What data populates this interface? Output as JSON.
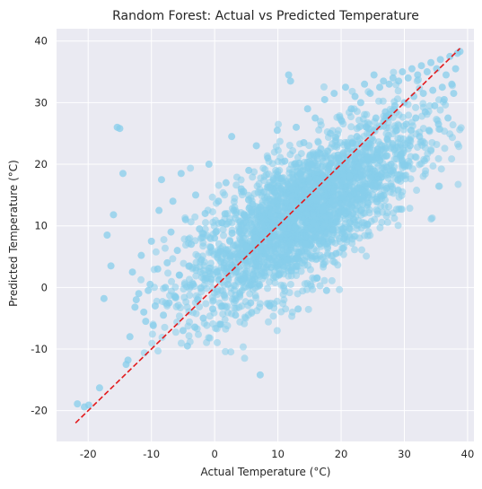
{
  "chart_data": {
    "type": "scatter",
    "title": "Random Forest: Actual vs Predicted Temperature",
    "xlabel": "Actual Temperature (°C)",
    "ylabel": "Predicted Temperature (°C)",
    "xlim": [
      -25,
      41
    ],
    "ylim": [
      -25,
      42
    ],
    "xticks": [
      -20,
      -10,
      0,
      10,
      20,
      30,
      40
    ],
    "yticks": [
      -20,
      -10,
      0,
      10,
      20,
      30,
      40
    ],
    "grid": true,
    "background": "#eaeaf2",
    "grid_color": "#ffffff",
    "point_color": "#87ceeb",
    "point_alpha": 0.55,
    "reference_line": {
      "x": [
        -22,
        38.8
      ],
      "y": [
        -22,
        38.8
      ],
      "color": "#e31a1c",
      "style": "dashed"
    },
    "points_summary": "dense cloud of several thousand points concentrated along the diagonal; representative sampled points below",
    "points": [
      [
        -21.7,
        -18.9
      ],
      [
        -20.6,
        -19.4
      ],
      [
        -19.9,
        -19.1
      ],
      [
        -18.2,
        -16.3
      ],
      [
        -17.5,
        -1.8
      ],
      [
        -17.0,
        8.5
      ],
      [
        -16.4,
        3.5
      ],
      [
        -16.0,
        11.8
      ],
      [
        -15.4,
        26.0
      ],
      [
        -15.0,
        25.8
      ],
      [
        -14.5,
        18.5
      ],
      [
        -14.0,
        -12.5
      ],
      [
        -13.7,
        -11.8
      ],
      [
        -13.4,
        -8.0
      ],
      [
        -13.0,
        2.5
      ],
      [
        -12.6,
        -3.2
      ],
      [
        -12.4,
        -2.0
      ],
      [
        -12.0,
        -1.0
      ],
      [
        -11.6,
        5.2
      ],
      [
        -11.2,
        -4.0
      ],
      [
        -10.9,
        -5.5
      ],
      [
        -10.5,
        -0.5
      ],
      [
        -10.2,
        0.5
      ],
      [
        -10.0,
        7.5
      ],
      [
        -9.7,
        -6.2
      ],
      [
        -9.4,
        -3.0
      ],
      [
        -9.0,
        3.0
      ],
      [
        -8.8,
        12.5
      ],
      [
        -8.4,
        17.5
      ],
      [
        -8.1,
        -4.5
      ],
      [
        -7.8,
        0.0
      ],
      [
        -7.5,
        4.0
      ],
      [
        -7.2,
        -2.5
      ],
      [
        -6.9,
        9.0
      ],
      [
        -6.6,
        14.0
      ],
      [
        -6.2,
        -1.5
      ],
      [
        -5.9,
        6.0
      ],
      [
        -5.6,
        2.0
      ],
      [
        -5.3,
        18.5
      ],
      [
        -5.0,
        -7.0
      ],
      [
        -4.6,
        11.0
      ],
      [
        -4.3,
        -9.5
      ],
      [
        -4.0,
        3.5
      ],
      [
        -3.7,
        7.0
      ],
      [
        -3.4,
        0.5
      ],
      [
        -3.0,
        15.0
      ],
      [
        -2.7,
        -2.0
      ],
      [
        -2.4,
        9.5
      ],
      [
        -2.1,
        4.5
      ],
      [
        -1.8,
        -5.0
      ],
      [
        -1.5,
        12.0
      ],
      [
        -1.2,
        1.5
      ],
      [
        -0.9,
        20.0
      ],
      [
        -0.6,
        6.5
      ],
      [
        -0.3,
        -3.5
      ],
      [
        0.0,
        8.0
      ],
      [
        0.3,
        2.5
      ],
      [
        0.6,
        14.0
      ],
      [
        0.9,
        -6.0
      ],
      [
        1.2,
        10.5
      ],
      [
        1.5,
        4.0
      ],
      [
        1.8,
        17.0
      ],
      [
        2.1,
        0.5
      ],
      [
        2.4,
        7.5
      ],
      [
        2.7,
        24.5
      ],
      [
        3.0,
        12.5
      ],
      [
        3.3,
        -4.5
      ],
      [
        3.6,
        5.5
      ],
      [
        3.9,
        9.0
      ],
      [
        4.2,
        16.0
      ],
      [
        4.5,
        1.0
      ],
      [
        4.8,
        11.5
      ],
      [
        5.1,
        6.5
      ],
      [
        5.4,
        19.0
      ],
      [
        5.7,
        -2.5
      ],
      [
        6.0,
        13.5
      ],
      [
        6.3,
        8.0
      ],
      [
        6.6,
        23.0
      ],
      [
        6.9,
        3.5
      ],
      [
        7.2,
        -14.2
      ],
      [
        7.5,
        10.0
      ],
      [
        7.8,
        15.5
      ],
      [
        8.1,
        5.0
      ],
      [
        8.4,
        21.0
      ],
      [
        8.7,
        -3.0
      ],
      [
        9.0,
        12.0
      ],
      [
        9.3,
        17.5
      ],
      [
        9.6,
        7.0
      ],
      [
        9.9,
        25.5
      ],
      [
        10.2,
        2.0
      ],
      [
        10.5,
        14.5
      ],
      [
        10.8,
        9.5
      ],
      [
        11.1,
        20.5
      ],
      [
        11.4,
        4.5
      ],
      [
        11.7,
        34.5
      ],
      [
        12.0,
        33.5
      ],
      [
        12.3,
        16.0
      ],
      [
        12.6,
        11.0
      ],
      [
        12.9,
        26.0
      ],
      [
        13.2,
        -3.5
      ],
      [
        13.5,
        18.5
      ],
      [
        13.8,
        13.0
      ],
      [
        14.1,
        23.5
      ],
      [
        14.4,
        7.0
      ],
      [
        14.7,
        29.0
      ],
      [
        15.0,
        15.0
      ],
      [
        15.3,
        20.0
      ],
      [
        15.6,
        10.5
      ],
      [
        15.9,
        27.5
      ],
      [
        16.2,
        1.5
      ],
      [
        16.5,
        17.5
      ],
      [
        16.8,
        22.5
      ],
      [
        17.1,
        12.5
      ],
      [
        17.4,
        30.5
      ],
      [
        17.7,
        -0.5
      ],
      [
        18.0,
        19.0
      ],
      [
        18.3,
        25.0
      ],
      [
        18.6,
        14.0
      ],
      [
        18.9,
        31.5
      ],
      [
        19.2,
        5.5
      ],
      [
        19.5,
        21.5
      ],
      [
        19.8,
        16.5
      ],
      [
        20.1,
        27.0
      ],
      [
        20.4,
        9.0
      ],
      [
        20.7,
        32.5
      ],
      [
        21.0,
        23.0
      ],
      [
        21.3,
        18.0
      ],
      [
        21.6,
        29.0
      ],
      [
        21.9,
        12.0
      ],
      [
        22.2,
        31.0
      ],
      [
        22.5,
        24.5
      ],
      [
        22.8,
        19.5
      ],
      [
        23.1,
        30.0
      ],
      [
        23.4,
        14.5
      ],
      [
        23.7,
        33.0
      ],
      [
        24.0,
        26.0
      ],
      [
        24.3,
        21.0
      ],
      [
        24.6,
        31.5
      ],
      [
        24.9,
        16.5
      ],
      [
        25.2,
        34.5
      ],
      [
        25.5,
        27.5
      ],
      [
        25.8,
        22.5
      ],
      [
        26.1,
        32.5
      ],
      [
        26.4,
        18.5
      ],
      [
        26.7,
        33.5
      ],
      [
        27.0,
        28.5
      ],
      [
        27.3,
        24.0
      ],
      [
        27.6,
        33.0
      ],
      [
        27.9,
        20.0
      ],
      [
        28.2,
        34.0
      ],
      [
        28.5,
        29.5
      ],
      [
        28.8,
        25.5
      ],
      [
        29.1,
        33.5
      ],
      [
        29.4,
        21.5
      ],
      [
        29.7,
        35.0
      ],
      [
        30.0,
        30.0
      ],
      [
        30.3,
        26.5
      ],
      [
        30.6,
        34.0
      ],
      [
        30.9,
        23.0
      ],
      [
        31.2,
        35.5
      ],
      [
        31.5,
        31.0
      ],
      [
        31.8,
        27.5
      ],
      [
        32.1,
        34.5
      ],
      [
        32.4,
        24.5
      ],
      [
        32.7,
        36.0
      ],
      [
        33.0,
        31.5
      ],
      [
        33.3,
        28.5
      ],
      [
        33.6,
        35.0
      ],
      [
        33.9,
        25.5
      ],
      [
        34.2,
        36.5
      ],
      [
        34.5,
        32.0
      ],
      [
        34.8,
        29.5
      ],
      [
        35.1,
        35.5
      ],
      [
        35.4,
        26.5
      ],
      [
        35.7,
        37.0
      ],
      [
        36.0,
        32.5
      ],
      [
        36.3,
        30.5
      ],
      [
        36.6,
        34.5
      ],
      [
        36.9,
        27.5
      ],
      [
        37.2,
        37.5
      ],
      [
        37.5,
        33.0
      ],
      [
        37.8,
        31.5
      ],
      [
        38.1,
        35.5
      ],
      [
        38.4,
        38.0
      ],
      [
        38.8,
        38.3
      ]
    ]
  }
}
